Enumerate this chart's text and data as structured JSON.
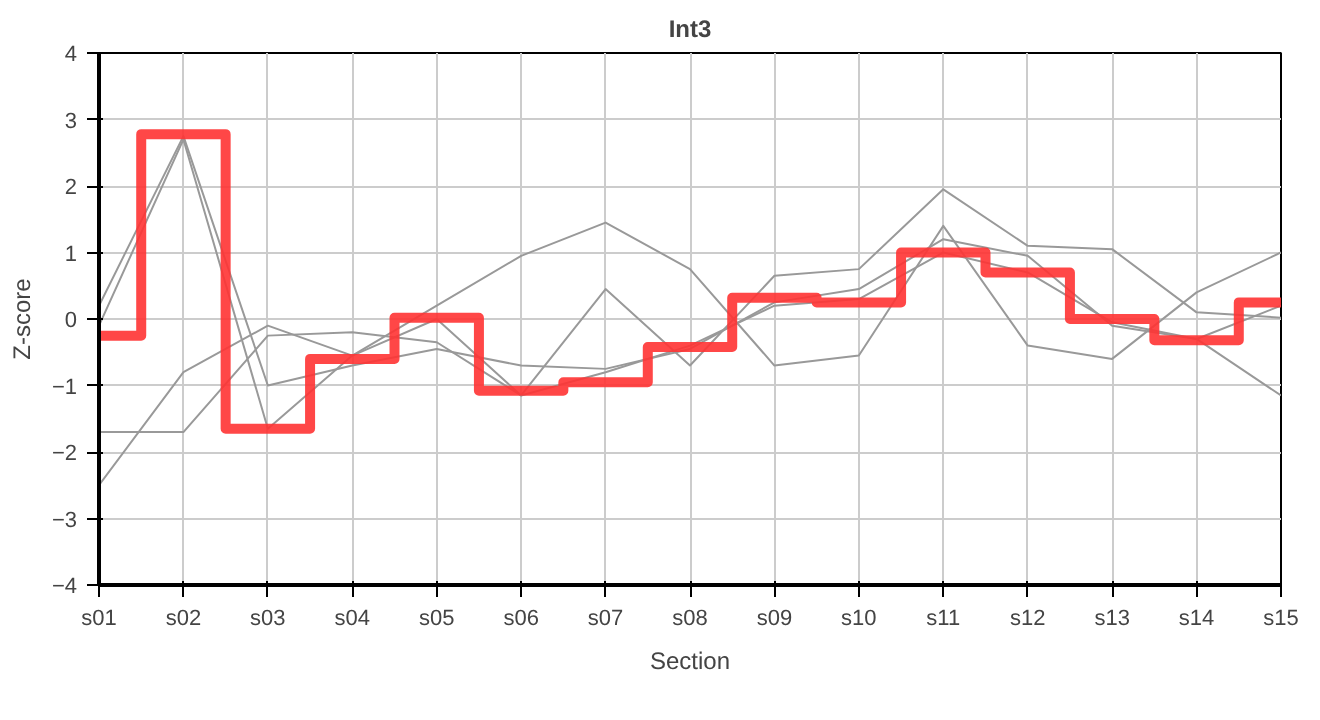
{
  "chart_data": {
    "type": "line",
    "title": "Int3",
    "xlabel": "Section",
    "ylabel": "Z-score",
    "categories": [
      "s01",
      "s02",
      "s03",
      "s04",
      "s05",
      "s06",
      "s07",
      "s08",
      "s09",
      "s10",
      "s11",
      "s12",
      "s13",
      "s14",
      "s15"
    ],
    "ylim": [
      -4,
      4
    ],
    "yticks": [
      -4,
      -3,
      -2,
      -1,
      0,
      1,
      2,
      3,
      4
    ],
    "grid": true,
    "series": [
      {
        "color": "#999999",
        "values": [
          -2.5,
          -0.8,
          -0.1,
          -0.55,
          0.2,
          0.95,
          1.45,
          0.75,
          -0.7,
          -0.55,
          1.4,
          -0.4,
          -0.6,
          0.4,
          1.0
        ]
      },
      {
        "color": "#999999",
        "values": [
          -1.7,
          -1.7,
          -0.25,
          -0.2,
          -0.35,
          -1.15,
          0.45,
          -0.7,
          0.65,
          0.75,
          1.95,
          1.1,
          1.05,
          0.1,
          0.02
        ]
      },
      {
        "color": "#999999",
        "values": [
          0.2,
          2.75,
          -1.0,
          -0.7,
          -0.45,
          -0.7,
          -0.75,
          -0.45,
          0.25,
          0.45,
          1.2,
          0.95,
          -0.1,
          -0.3,
          -1.15
        ]
      },
      {
        "color": "#999999",
        "values": [
          -0.1,
          2.7,
          -1.65,
          -0.55,
          0.0,
          -1.15,
          -0.8,
          -0.4,
          0.2,
          0.3,
          1.0,
          0.7,
          -0.05,
          -0.3,
          0.2
        ]
      },
      {
        "type": "step",
        "color": "#ff3333",
        "values": [
          -0.25,
          2.78,
          -1.65,
          -0.6,
          0.02,
          -1.08,
          -0.95,
          -0.42,
          0.32,
          0.25,
          1.0,
          0.7,
          0.0,
          -0.32,
          0.25
        ]
      }
    ]
  }
}
